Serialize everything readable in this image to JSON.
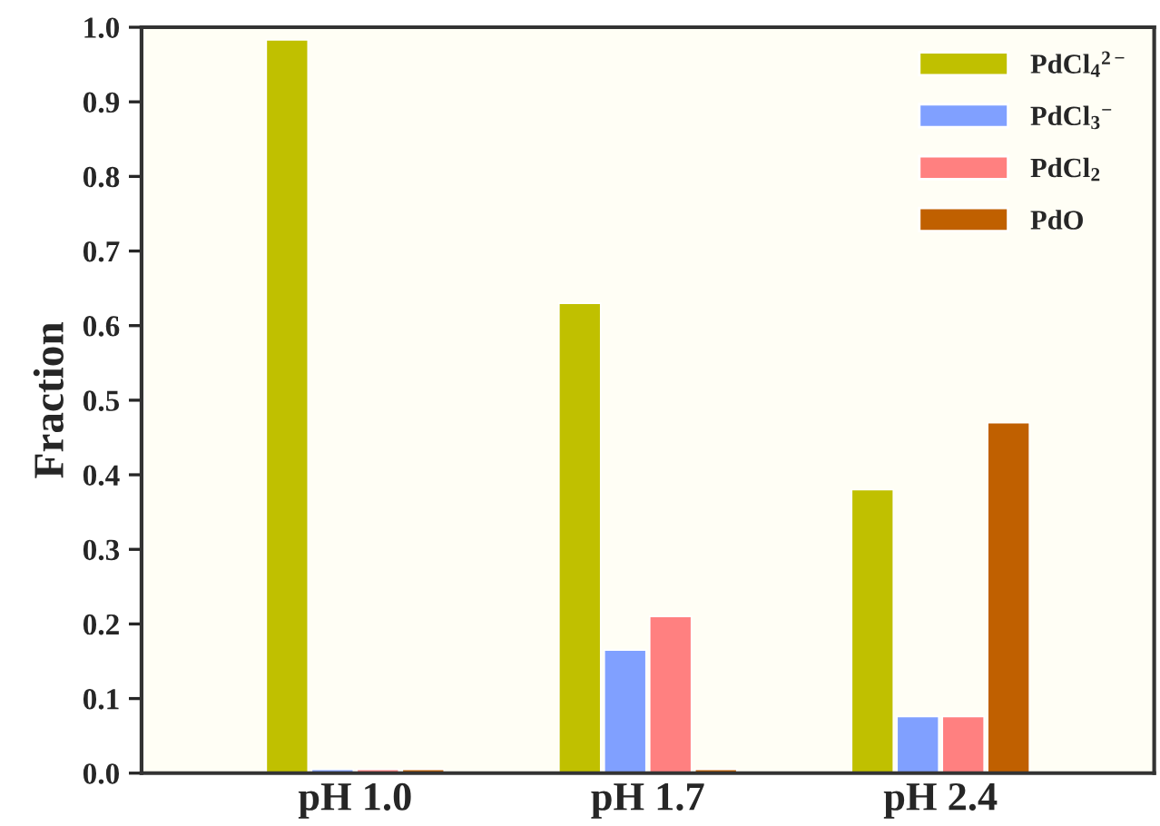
{
  "chart_data": {
    "type": "bar",
    "ylabel": "Fraction",
    "categories": [
      "pH 1.0",
      "pH 1.7",
      "pH 2.4"
    ],
    "series": [
      {
        "name": "PdCl$_{4}$$^{2−}$",
        "color": "#c0c000",
        "values": [
          0.983,
          0.63,
          0.38
        ]
      },
      {
        "name": "PdCl$_{3}$$^{−}$",
        "color": "#80a0ff",
        "values": [
          0.005,
          0.165,
          0.076
        ]
      },
      {
        "name": "PdCl$_{2}$",
        "color": "#ff8080",
        "values": [
          0.005,
          0.21,
          0.076
        ]
      },
      {
        "name": "PdO",
        "color": "#c06000",
        "values": [
          0.005,
          0.005,
          0.47
        ]
      }
    ],
    "ylim": [
      0,
      1.0
    ],
    "yticks": [
      {
        "value": 0,
        "label": "0.0"
      },
      0.1,
      0.2,
      0.3,
      0.4,
      0.5,
      0.6,
      0.7,
      0.8,
      0.9,
      {
        "value": 1,
        "label": "1.0"
      }
    ],
    "grid": false,
    "legend": "top right"
  }
}
